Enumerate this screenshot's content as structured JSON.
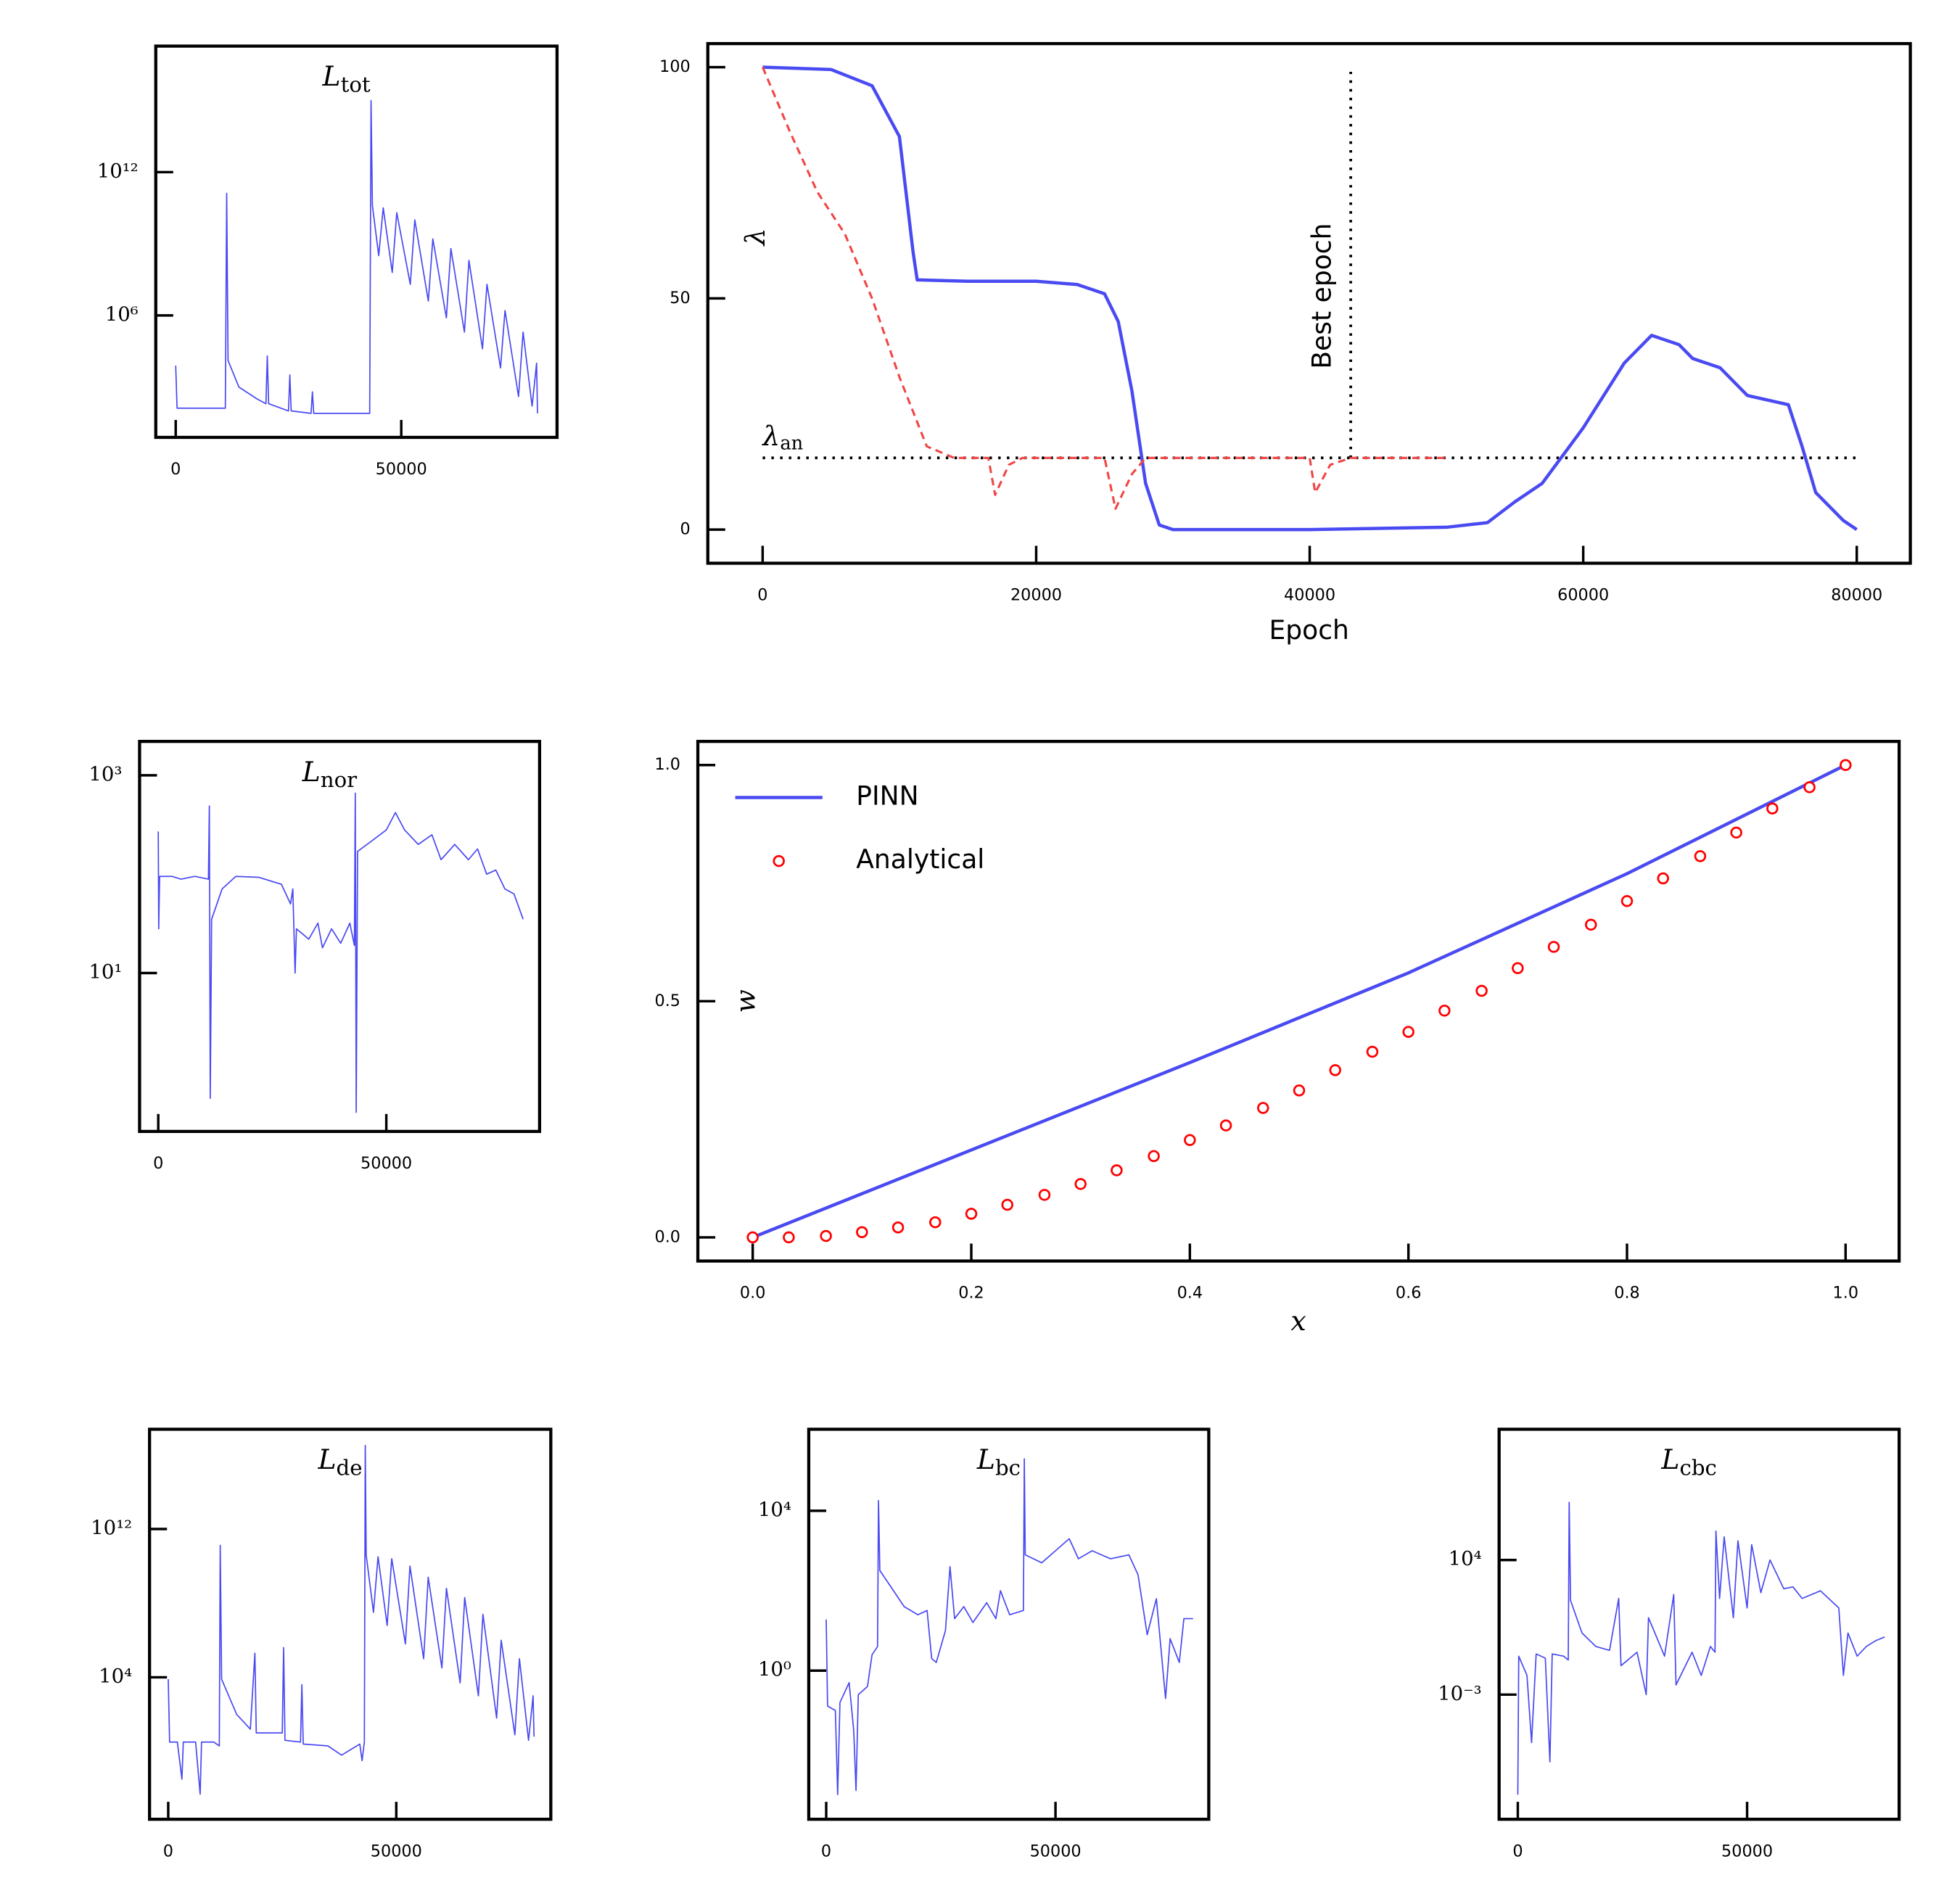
{
  "chart_data": [
    {
      "type": "line",
      "title": "L",
      "title_sub": "tot",
      "log_y": true,
      "xlim": [
        -4420,
        84530
      ],
      "ylim": [
        7.8,
        1.9e+17
      ],
      "xticks": [
        0,
        50000
      ],
      "yticks": [
        {
          "value": 1000000.0,
          "label": "10⁶"
        },
        {
          "value": 1000000000000.0,
          "label": "10¹²"
        }
      ],
      "series": [
        {
          "color": "#4a4af2",
          "style": "solid",
          "x": [
            0,
            300,
            5000,
            11000,
            11300,
            11600,
            14000,
            18000,
            20000,
            20300,
            20600,
            25000,
            25300,
            25600,
            30000,
            30300,
            30600,
            43000,
            43300,
            43600,
            45000,
            46000,
            48000,
            49000,
            52000,
            53000,
            56000,
            57000,
            60000,
            61000,
            64000,
            65000,
            68000,
            69000,
            72000,
            73000,
            76000,
            77000,
            79000,
            80000,
            80200
          ],
          "values": [
            7900.0,
            130.0,
            130.0,
            130.0,
            130000000000.0,
            13000.0,
            1000.0,
            320.0,
            200.0,
            20000.0,
            200.0,
            100.0,
            3200.0,
            100.0,
            79.0,
            630.0,
            79.0,
            79.0,
            1000000000000000.0,
            40000000000.0,
            320000000.0,
            32000000000.0,
            63000000.0,
            20000000000.0,
            20000000.0,
            10000000000.0,
            4000000.0,
            1600000000.0,
            790000.0,
            630000000.0,
            200000.0,
            200000000.0,
            40000.0,
            20000000.0,
            6300.0,
            1600000.0,
            400.0,
            200000.0,
            160.0,
            10000.0,
            79.0
          ]
        }
      ]
    },
    {
      "type": "line",
      "xlabel": "Epoch",
      "ylabel": "λ",
      "log_y": false,
      "xlim": [
        -4009,
        83918
      ],
      "ylim": [
        -7.28,
        105.1
      ],
      "xticks": [
        0,
        20000,
        40000,
        60000,
        80000
      ],
      "yticks": [
        0,
        50,
        100
      ],
      "hline": {
        "y": 15.5,
        "x": [
          0,
          80000
        ],
        "label": "λ",
        "label_sub": "an"
      },
      "vline": {
        "x": 43000,
        "y": [
          15.5,
          99
        ],
        "label": "Best epoch"
      },
      "series": [
        {
          "color": "#4a4af2",
          "style": "solid",
          "x": [
            0,
            5000,
            8000,
            10000,
            11000,
            11300,
            15000,
            20000,
            23000,
            25000,
            26000,
            27000,
            28000,
            29000,
            30000,
            40000,
            50000,
            53000,
            55000,
            57000,
            60000,
            63000,
            65000,
            67000,
            68000,
            70000,
            72000,
            75000,
            76000,
            77000,
            79000,
            80000
          ],
          "values": [
            100,
            99.5,
            96,
            85,
            60,
            54,
            53.7,
            53.7,
            53,
            51,
            45,
            30,
            10,
            1,
            0,
            0,
            0.5,
            1.5,
            6,
            10,
            22,
            36,
            42,
            40,
            37,
            35,
            29,
            27,
            18,
            8,
            2,
            0
          ]
        },
        {
          "color": "#f04646",
          "style": "dashed",
          "x": [
            0,
            2000,
            4000,
            6000,
            8000,
            10000,
            12000,
            14000,
            16500,
            17000,
            18000,
            19000,
            25000,
            25800,
            27000,
            28000,
            40000,
            40400,
            41500,
            43000,
            50000
          ],
          "values": [
            100,
            86,
            73,
            64,
            50,
            33,
            18,
            15.5,
            15.5,
            7.5,
            14,
            15.5,
            15.5,
            4.5,
            12,
            15.5,
            15.5,
            8,
            14,
            15.5,
            15.5
          ]
        }
      ]
    },
    {
      "type": "line",
      "title": "L",
      "title_sub": "nor",
      "log_y": true,
      "xlim": [
        -4098,
        83607
      ],
      "ylim": [
        0.25,
        2200.0
      ],
      "xticks": [
        0,
        50000
      ],
      "yticks": [
        {
          "value": 10,
          "label": "10¹"
        },
        {
          "value": 1000,
          "label": "10³"
        }
      ],
      "series": [
        {
          "color": "#4a4af2",
          "style": "solid",
          "x": [
            0,
            100,
            300,
            3000,
            5000,
            8000,
            11000,
            11200,
            11400,
            11700,
            14000,
            17000,
            22000,
            27000,
            29000,
            29500,
            30000,
            30300,
            33000,
            35000,
            36000,
            38000,
            40000,
            42000,
            43000,
            43200,
            43400,
            43700,
            47000,
            50000,
            52000,
            54000,
            57000,
            60000,
            62000,
            65000,
            68000,
            70000,
            72000,
            74000,
            76000,
            78000,
            80000
          ],
          "values": [
            270.0,
            28.0,
            95.0,
            95.0,
            89.0,
            95.0,
            89.0,
            490.0,
            0.54,
            35.0,
            71.0,
            95.0,
            93.0,
            79.0,
            50.0,
            71.0,
            10.0,
            28.0,
            22.0,
            32.0,
            18.0,
            28.0,
            20.0,
            32.0,
            19.0,
            660.0,
            0.39,
            170.0,
            220.0,
            280.0,
            420.0,
            280.0,
            200.0,
            250.0,
            140.0,
            200.0,
            140.0,
            180.0,
            100.0,
            110.0,
            71.0,
            63.0,
            35.0
          ]
        }
      ]
    },
    {
      "type": "line",
      "xlabel": "x",
      "ylabel": "w",
      "log_y": false,
      "legend": "upper left",
      "xlim": [
        -0.0502,
        1.049
      ],
      "ylim": [
        -0.0501,
        1.05
      ],
      "xticks": [
        {
          "value": 0,
          "label": "0.0"
        },
        0.2,
        0.4,
        0.6,
        0.8,
        {
          "value": 1,
          "label": "1.0"
        }
      ],
      "yticks": [
        {
          "value": 0,
          "label": "0.0"
        },
        0.5,
        {
          "value": 1,
          "label": "1.0"
        }
      ],
      "series": [
        {
          "name": "PINN",
          "color": "#4a4af2",
          "style": "solid",
          "x": [
            0,
            0.2,
            0.4,
            0.6,
            0.8,
            1.0
          ],
          "values": [
            0,
            0.185,
            0.37,
            0.56,
            0.77,
            1.0
          ]
        },
        {
          "name": "Analytical",
          "color": "#ff0000",
          "style": "markers",
          "x": [
            0,
            0.033,
            0.067,
            0.1,
            0.133,
            0.167,
            0.2,
            0.233,
            0.267,
            0.3,
            0.333,
            0.367,
            0.4,
            0.433,
            0.467,
            0.5,
            0.533,
            0.567,
            0.6,
            0.633,
            0.667,
            0.7,
            0.733,
            0.767,
            0.8,
            0.833,
            0.867,
            0.9,
            0.933,
            0.967,
            1.0
          ],
          "values": [
            0,
            0,
            0.003,
            0.011,
            0.021,
            0.032,
            0.05,
            0.069,
            0.09,
            0.113,
            0.142,
            0.172,
            0.206,
            0.237,
            0.274,
            0.311,
            0.354,
            0.393,
            0.435,
            0.48,
            0.522,
            0.57,
            0.615,
            0.662,
            0.712,
            0.76,
            0.807,
            0.857,
            0.908,
            0.953,
            1.0
          ]
        }
      ]
    },
    {
      "type": "line",
      "title": "L",
      "title_sub": "de",
      "log_y": true,
      "xlim": [
        -4098,
        83880
      ],
      "ylim": [
        0.00022,
        2.4e+17
      ],
      "xticks": [
        0,
        50000
      ],
      "yticks": [
        {
          "value": 10000.0,
          "label": "10⁴"
        },
        {
          "value": 1000000000000.0,
          "label": "10¹²"
        }
      ],
      "series": [
        {
          "color": "#4a4af2",
          "style": "solid",
          "x": [
            0,
            300,
            2000,
            3000,
            3300,
            6000,
            7000,
            7300,
            10000,
            11200,
            11400,
            11700,
            15000,
            18000,
            19000,
            19300,
            25000,
            25300,
            25600,
            29000,
            29300,
            29600,
            35000,
            38000,
            42000,
            42500,
            43000,
            43200,
            43400,
            45000,
            46000,
            48000,
            49000,
            52000,
            53000,
            56000,
            57000,
            60000,
            61000,
            64000,
            65000,
            68000,
            69000,
            72000,
            73000,
            76000,
            77000,
            79000,
            80000,
            80200
          ],
          "values": [
            7900.0,
            3.2,
            3.2,
            0.032,
            3.2,
            3.2,
            0.005,
            3.2,
            3.2,
            2,
            130000000000.0,
            7900.0,
            100.0,
            16.0,
            200000.0,
            10.0,
            10.0,
            400000.0,
            4,
            3.2,
            4000.0,
            2.5,
            2,
            0.63,
            2.5,
            0.32,
            3.2,
            3.2e+16,
            40000000000.0,
            32000000.0,
            32000000000.0,
            6300000.0,
            25000000000.0,
            630000.0,
            10000000000.0,
            100000.0,
            2500000000.0,
            32000.0,
            630000000.0,
            5000.0,
            200000000.0,
            1000.0,
            25000000.0,
            63.0,
            1000000.0,
            7.9,
            100000.0,
            4,
            1000.0,
            6.3
          ]
        }
      ]
    },
    {
      "type": "line",
      "title": "L",
      "title_sub": "bc",
      "log_y": true,
      "xlim": [
        -3804,
        83424
      ],
      "ylim": [
        0.00019,
        1100000.0
      ],
      "xticks": [
        0,
        50000
      ],
      "yticks": [
        {
          "value": 1,
          "label": "10⁰"
        },
        {
          "value": 10000.0,
          "label": "10⁴"
        }
      ],
      "series": [
        {
          "color": "#4a4af2",
          "style": "solid",
          "x": [
            0,
            300,
            2000,
            2500,
            3000,
            5000,
            6000,
            6500,
            7000,
            9000,
            10000,
            11200,
            11400,
            11700,
            14000,
            17000,
            20000,
            22000,
            23000,
            24000,
            26000,
            27000,
            28000,
            30000,
            32000,
            35000,
            37000,
            38000,
            40000,
            43000,
            43200,
            43400,
            47000,
            50000,
            53000,
            55000,
            58000,
            62000,
            66000,
            68000,
            70000,
            72000,
            74000,
            75000,
            77000,
            78000,
            80000
          ],
          "values": [
            19.0,
            0.13,
            0.1,
            0.00079,
            0.16,
            0.5,
            0.032,
            0.001,
            0.25,
            0.4,
            2.5,
            4,
            18000.0,
            320.0,
            130.0,
            40.0,
            25.0,
            32.0,
            2,
            1.6,
            10.0,
            400.0,
            20.0,
            40.0,
            16.0,
            50.0,
            20.0,
            100.0,
            25.0,
            32.0,
            200000.0,
            790.0,
            500.0,
            1000.0,
            2000.0,
            630.0,
            1000.0,
            630.0,
            790.0,
            250.0,
            7.9,
            63.0,
            0.2,
            6.3,
            1.6,
            20.0,
            20.0
          ]
        }
      ]
    },
    {
      "type": "line",
      "title": "L",
      "title_sub": "cbc",
      "log_y": true,
      "xlim": [
        -4076,
        83152
      ],
      "ylim": [
        3.3e-10,
        63000000000.0
      ],
      "xticks": [
        0,
        50000
      ],
      "yticks": [
        {
          "value": 0.001,
          "label": "10⁻³"
        },
        {
          "value": 10000.0,
          "label": "10⁴"
        }
      ],
      "series": [
        {
          "color": "#4a4af2",
          "style": "solid",
          "x": [
            0,
            200,
            2000,
            3000,
            4000,
            6000,
            7000,
            7500,
            10000,
            11000,
            11200,
            11500,
            14000,
            17000,
            20000,
            22000,
            22500,
            26000,
            28000,
            28500,
            32000,
            34000,
            34500,
            38000,
            40000,
            42000,
            43000,
            43200,
            44000,
            45000,
            47000,
            48000,
            50000,
            51000,
            53000,
            55000,
            58000,
            60000,
            62000,
            66000,
            70000,
            71000,
            72000,
            74000,
            76000,
            78000,
            80000
          ],
          "values": [
            6.3e-09,
            0.1,
            0.01,
            3.2e-06,
            0.13,
            0.079,
            3.2e-07,
            0.13,
            0.1,
            0.063,
            10000000.0,
            79.0,
            1.6,
            0.32,
            0.2,
            100.0,
            0.032,
            0.16,
            0.001,
            10.0,
            0.1,
            160.0,
            0.0032,
            0.16,
            0.01,
            0.32,
            0.16,
            320000.0,
            100.0,
            160000.0,
            10.0,
            100000.0,
            32.0,
            63000.0,
            200.0,
            10000.0,
            320.0,
            400.0,
            100.0,
            250.0,
            32.0,
            0.01,
            1.6,
            0.1,
            0.32,
            0.63,
            1
          ]
        }
      ]
    }
  ]
}
